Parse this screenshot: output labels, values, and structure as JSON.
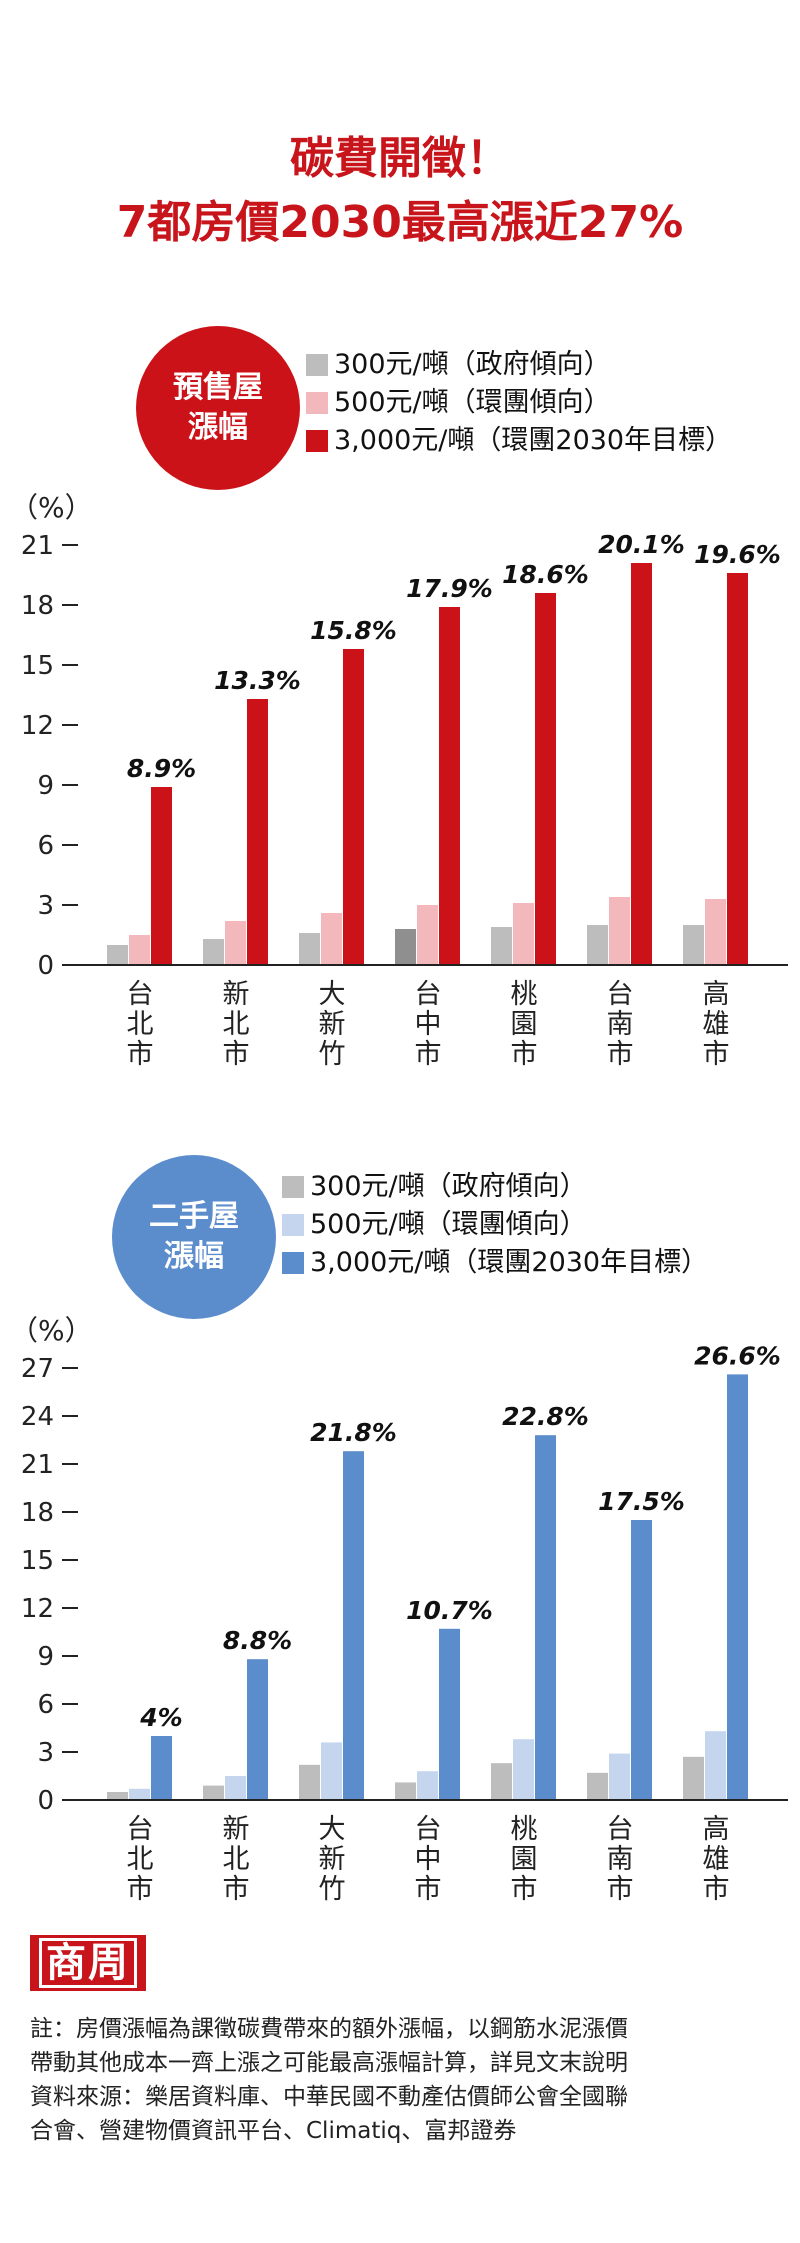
{
  "title_line1": "碳費開徵！",
  "title_line2": "7都房價2030最高漲近27%",
  "colors": {
    "title": "#c8141b",
    "presale": [
      "#bdbdbd",
      "#f2b8bb",
      "#cc1219"
    ],
    "presale_taichung_gov": "#8f8f8f",
    "presale_circle": "#cc1219",
    "existing": [
      "#bdbdbd",
      "#c5d5ee",
      "#5b8ccc"
    ],
    "existing_circle": "#5b8ccc"
  },
  "presale": {
    "circle_line1": "預售屋",
    "circle_line2": "漲幅"
  },
  "existing": {
    "circle_line1": "二手屋",
    "circle_line2": "漲幅"
  },
  "chart_data": [
    {
      "type": "bar",
      "unit_label": "（%）",
      "categories": [
        "台北市",
        "新北市",
        "大新竹",
        "台中市",
        "桃園市",
        "台南市",
        "高雄市"
      ],
      "series": [
        {
          "name": "300元/噸（政府傾向）",
          "values": [
            1.0,
            1.3,
            1.6,
            1.8,
            1.9,
            2.0,
            2.0
          ]
        },
        {
          "name": "500元/噸（環團傾向）",
          "values": [
            1.5,
            2.2,
            2.6,
            3.0,
            3.1,
            3.4,
            3.3
          ]
        },
        {
          "name": "3,000元/噸（環團2030年目標）",
          "values": [
            8.9,
            13.3,
            15.8,
            17.9,
            18.6,
            20.1,
            19.6
          ]
        }
      ],
      "data_labels": [
        "8.9%",
        "13.3%",
        "15.8%",
        "17.9%",
        "18.6%",
        "20.1%",
        "19.6%"
      ],
      "yticks": [
        0,
        3,
        6,
        9,
        12,
        15,
        18,
        21
      ],
      "ylim": [
        0,
        21
      ]
    },
    {
      "type": "bar",
      "unit_label": "（%）",
      "categories": [
        "台北市",
        "新北市",
        "大新竹",
        "台中市",
        "桃園市",
        "台南市",
        "高雄市"
      ],
      "series": [
        {
          "name": "300元/噸（政府傾向）",
          "values": [
            0.5,
            0.9,
            2.2,
            1.1,
            2.3,
            1.7,
            2.7
          ]
        },
        {
          "name": "500元/噸（環團傾向）",
          "values": [
            0.7,
            1.5,
            3.6,
            1.8,
            3.8,
            2.9,
            4.3
          ]
        },
        {
          "name": "3,000元/噸（環團2030年目標）",
          "values": [
            4,
            8.8,
            21.8,
            10.7,
            22.8,
            17.5,
            26.6
          ]
        }
      ],
      "data_labels": [
        "4%",
        "8.8%",
        "21.8%",
        "10.7%",
        "22.8%",
        "17.5%",
        "26.6%"
      ],
      "yticks": [
        0,
        3,
        6,
        9,
        12,
        15,
        18,
        21,
        24,
        27
      ],
      "ylim": [
        0,
        27
      ]
    }
  ],
  "logo_text": "商周",
  "footer": {
    "note_line1": "註：房價漲幅為課徵碳費帶來的額外漲幅，以鋼筋水泥漲價",
    "note_line2": "帶動其他成本一齊上漲之可能最高漲幅計算，詳見文末說明",
    "source_line1": "資料來源：樂居資料庫、中華民國不動產估價師公會全國聯",
    "source_line2": "合會、營建物價資訊平台、Climatiq、富邦證券"
  }
}
